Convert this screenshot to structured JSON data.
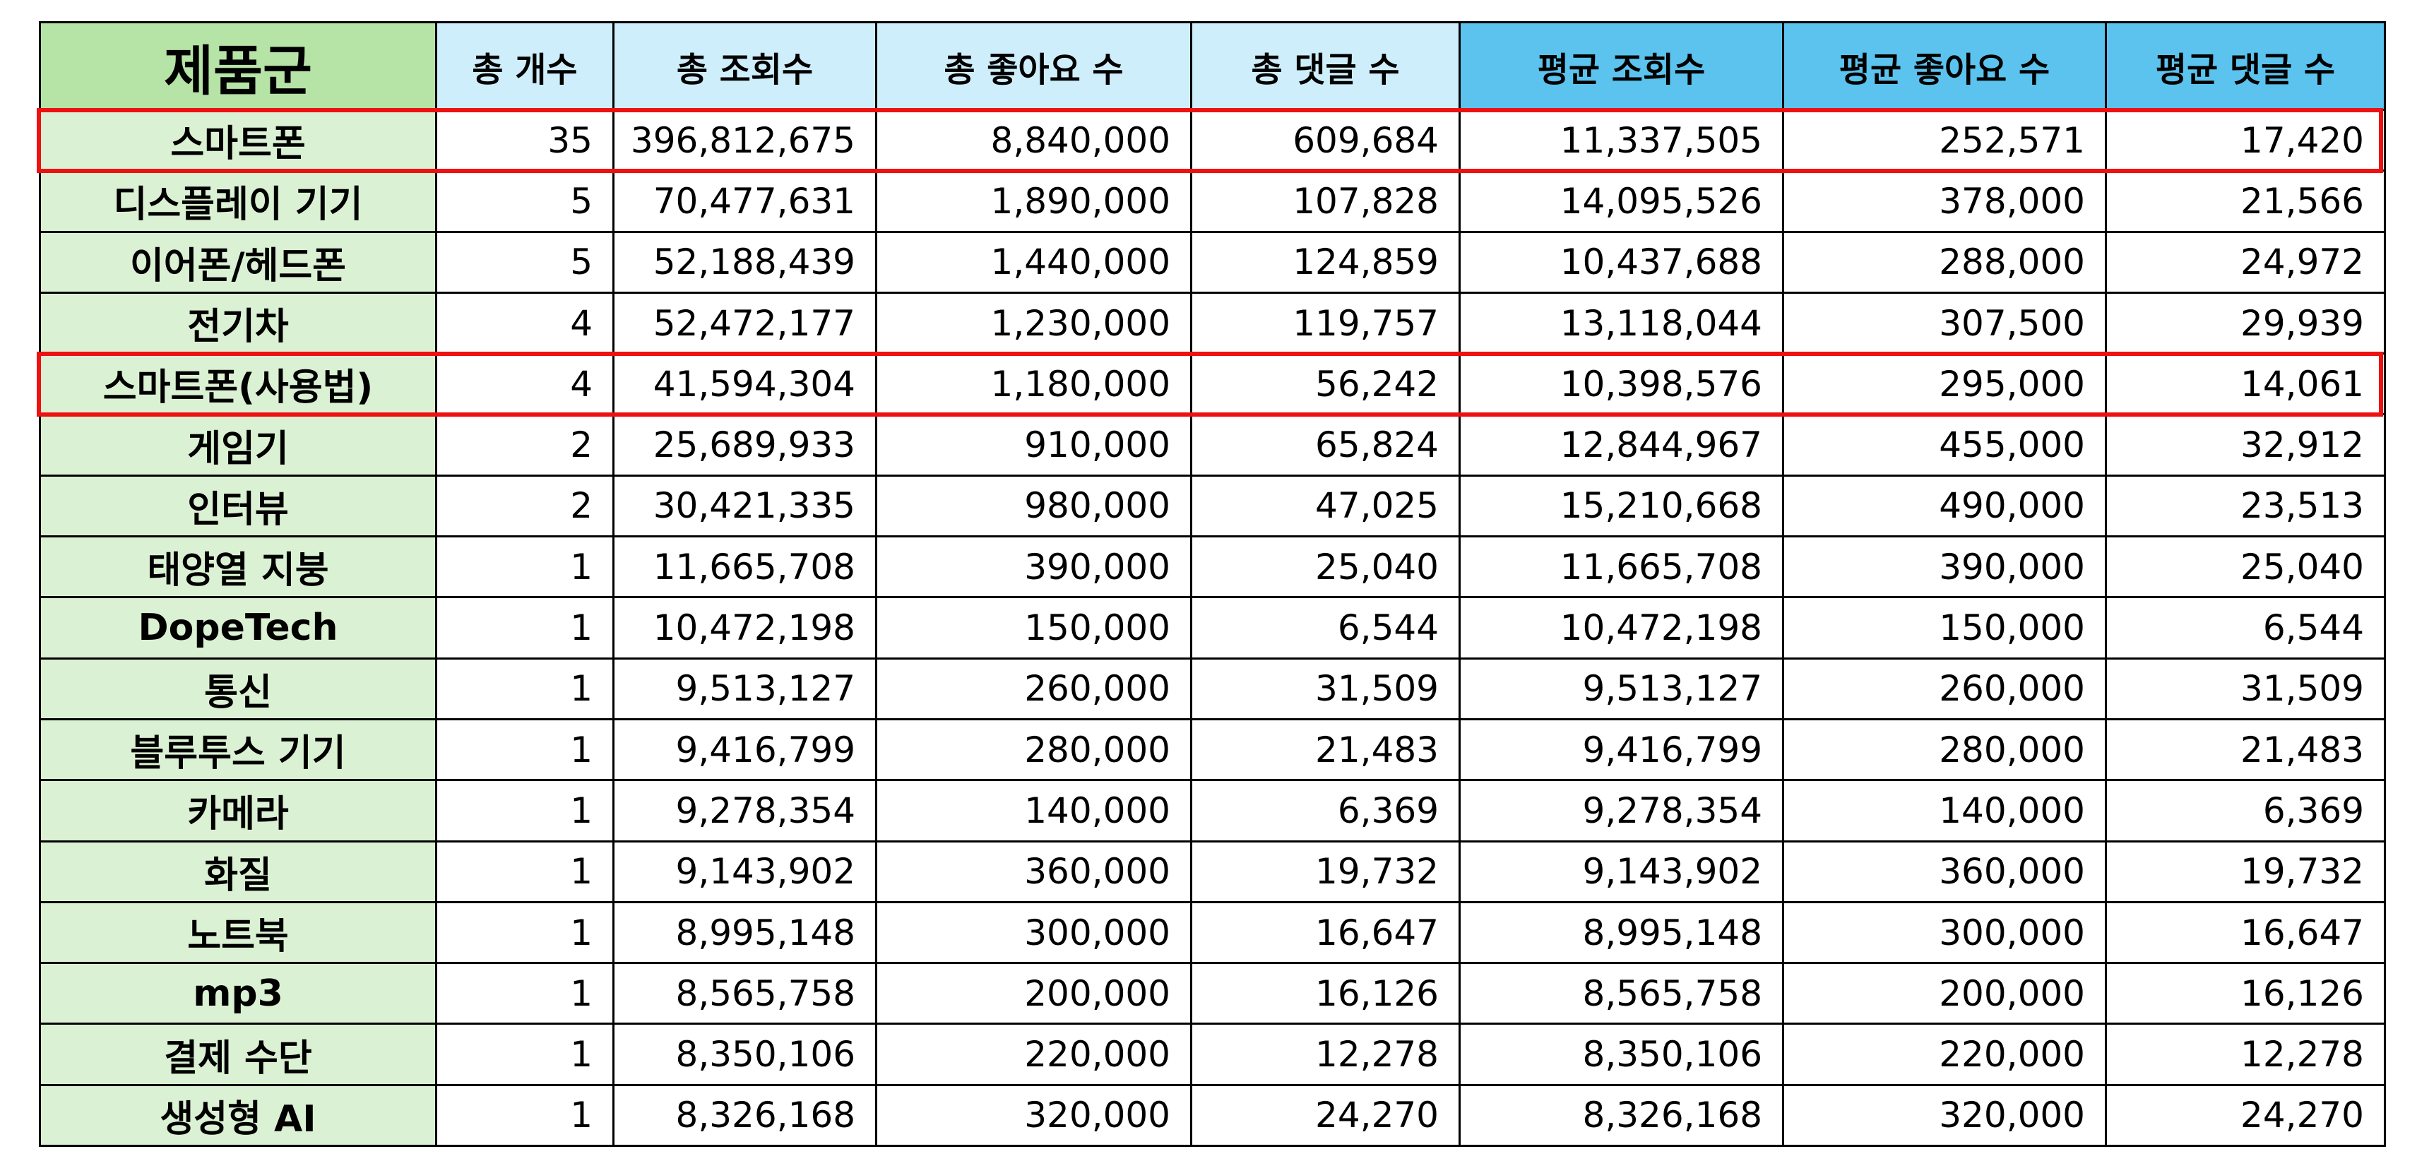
{
  "colors": {
    "category_header_bg": "#b6e3a6",
    "category_cell_bg": "#dbf1d3",
    "totals_header_bg": "#cfeefc",
    "average_header_bg": "#5bc3ee",
    "highlight_border": "#ee1111"
  },
  "table": {
    "headers": [
      "제품군",
      "총 개수",
      "총 조회수",
      "총 좋아요 수",
      "총 댓글 수",
      "평균 조회수",
      "평균 좋아요 수",
      "평균 댓글 수"
    ],
    "rows": [
      [
        "스마트폰",
        "35",
        "396,812,675",
        "8,840,000",
        "609,684",
        "11,337,505",
        "252,571",
        "17,420"
      ],
      [
        "디스플레이 기기",
        "5",
        "70,477,631",
        "1,890,000",
        "107,828",
        "14,095,526",
        "378,000",
        "21,566"
      ],
      [
        "이어폰/헤드폰",
        "5",
        "52,188,439",
        "1,440,000",
        "124,859",
        "10,437,688",
        "288,000",
        "24,972"
      ],
      [
        "전기차",
        "4",
        "52,472,177",
        "1,230,000",
        "119,757",
        "13,118,044",
        "307,500",
        "29,939"
      ],
      [
        "스마트폰(사용법)",
        "4",
        "41,594,304",
        "1,180,000",
        "56,242",
        "10,398,576",
        "295,000",
        "14,061"
      ],
      [
        "게임기",
        "2",
        "25,689,933",
        "910,000",
        "65,824",
        "12,844,967",
        "455,000",
        "32,912"
      ],
      [
        "인터뷰",
        "2",
        "30,421,335",
        "980,000",
        "47,025",
        "15,210,668",
        "490,000",
        "23,513"
      ],
      [
        "태양열 지붕",
        "1",
        "11,665,708",
        "390,000",
        "25,040",
        "11,665,708",
        "390,000",
        "25,040"
      ],
      [
        "DopeTech",
        "1",
        "10,472,198",
        "150,000",
        "6,544",
        "10,472,198",
        "150,000",
        "6,544"
      ],
      [
        "통신",
        "1",
        "9,513,127",
        "260,000",
        "31,509",
        "9,513,127",
        "260,000",
        "31,509"
      ],
      [
        "블루투스 기기",
        "1",
        "9,416,799",
        "280,000",
        "21,483",
        "9,416,799",
        "280,000",
        "21,483"
      ],
      [
        "카메라",
        "1",
        "9,278,354",
        "140,000",
        "6,369",
        "9,278,354",
        "140,000",
        "6,369"
      ],
      [
        "화질",
        "1",
        "9,143,902",
        "360,000",
        "19,732",
        "9,143,902",
        "360,000",
        "19,732"
      ],
      [
        "노트북",
        "1",
        "8,995,148",
        "300,000",
        "16,647",
        "8,995,148",
        "300,000",
        "16,647"
      ],
      [
        "mp3",
        "1",
        "8,565,758",
        "200,000",
        "16,126",
        "8,565,758",
        "200,000",
        "16,126"
      ],
      [
        "결제 수단",
        "1",
        "8,350,106",
        "220,000",
        "12,278",
        "8,350,106",
        "220,000",
        "12,278"
      ],
      [
        "생성형 AI",
        "1",
        "8,326,168",
        "320,000",
        "24,270",
        "8,326,168",
        "320,000",
        "24,270"
      ]
    ],
    "highlighted_rows": [
      0,
      4
    ]
  }
}
